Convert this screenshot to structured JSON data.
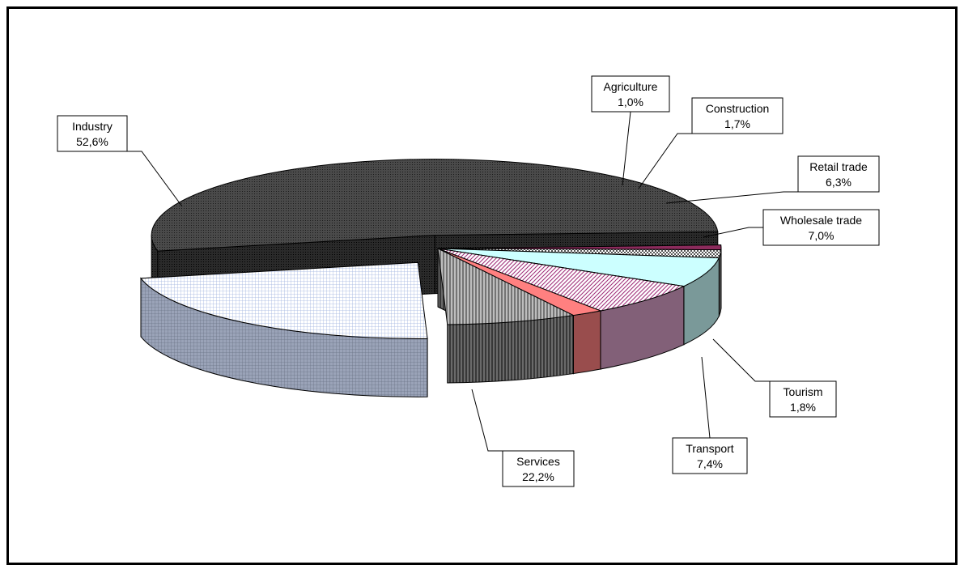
{
  "chart_data": {
    "type": "pie",
    "variant": "3d-exploded",
    "title": "",
    "legend": "none",
    "slices": [
      {
        "label": "Industry",
        "value": 52.6,
        "text": "52,6%",
        "color": "#3a3a3a",
        "pattern": "dots-dark"
      },
      {
        "label": "Agriculture",
        "value": 1.0,
        "text": "1,0%",
        "color": "#8b2b5c",
        "pattern": "solid"
      },
      {
        "label": "Construction",
        "value": 1.7,
        "text": "1,7%",
        "color": "#9a9a9a",
        "pattern": "checker"
      },
      {
        "label": "Retail trade",
        "value": 6.3,
        "text": "6,3%",
        "color": "#ccffff",
        "pattern": "solid"
      },
      {
        "label": "Wholesale trade",
        "value": 7.0,
        "text": "7,0%",
        "color": "#d9a0c8",
        "pattern": "diagonal"
      },
      {
        "label": "Tourism",
        "value": 1.8,
        "text": "1,8%",
        "color": "#ff8080",
        "pattern": "solid"
      },
      {
        "label": "Transport",
        "value": 7.4,
        "text": "7,4%",
        "color": "#9c9c9c",
        "pattern": "vertical"
      },
      {
        "label": "Services",
        "value": 22.2,
        "text": "22,2%",
        "color": "#eef3ff",
        "pattern": "grid"
      }
    ]
  }
}
